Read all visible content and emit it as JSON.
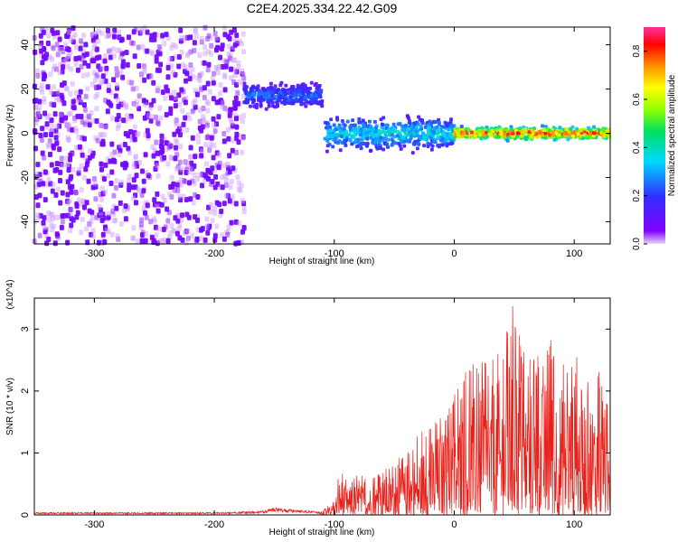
{
  "title": "C2E4.2025.334.22.42.G09",
  "colors": {
    "spectrogram_low": "#8000ff",
    "spectrogram_peak": "#ff0000",
    "snr_line": "#e8201a",
    "axis": "#000000"
  },
  "chart_data": [
    {
      "type": "heatmap",
      "name": "spectrogram",
      "xlabel": "Height of straight line (km)",
      "ylabel": "Frequency (Hz)",
      "xlim": [
        -350,
        130
      ],
      "ylim": [
        -50,
        48
      ],
      "x_ticks": [
        -300,
        -200,
        -100,
        0,
        100
      ],
      "x_tick_labels": [
        "-300",
        "-200",
        "-100",
        "0",
        "100"
      ],
      "y_ticks": [
        -40,
        -20,
        0,
        20,
        40
      ],
      "y_tick_labels": [
        "-40",
        "-20",
        "0",
        "20",
        "40"
      ],
      "colorbar": {
        "label": "Normalized spectral amplitude",
        "range": [
          0,
          0.9
        ],
        "ticks": [
          0,
          0.2,
          0.4,
          0.6,
          0.8
        ],
        "tick_labels": [
          "0.0",
          "0.2",
          "0.4",
          "0.6",
          "0.8"
        ],
        "colormap": "rainbow (purple → blue → cyan → green → yellow → orange → red → pink)"
      },
      "regions": [
        {
          "x_range": [
            -350,
            -175
          ],
          "freq_range": [
            -50,
            48
          ],
          "amplitude": "noise ~0.0-0.1"
        },
        {
          "x_range": [
            -175,
            -110
          ],
          "freq_center": 17,
          "freq_halfwidth": 6,
          "amplitude": 0.25,
          "note": "signal band near +15 to +20 Hz"
        },
        {
          "x_range": [
            -108,
            0
          ],
          "freq_center": 0,
          "freq_halfwidth": 8,
          "amplitude": 0.35
        },
        {
          "x_range": [
            0,
            130
          ],
          "freq_center": 0,
          "freq_halfwidth": 3,
          "amplitude": 0.8,
          "note": "narrow band, peaks ~0.85 near x=50-100"
        }
      ]
    },
    {
      "type": "line",
      "name": "snr",
      "xlabel": "Height of straight line (km)",
      "ylabel": "SNR (10 * v/v)",
      "y_multiplier": "(x10^4)",
      "xlim": [
        -350,
        130
      ],
      "ylim": [
        0,
        3.5
      ],
      "x_ticks": [
        -300,
        -200,
        -100,
        0,
        100
      ],
      "x_tick_labels": [
        "-300",
        "-200",
        "-100",
        "0",
        "100"
      ],
      "y_ticks": [
        0,
        1,
        2,
        3
      ],
      "y_tick_labels": [
        "0",
        "1",
        "2",
        "3"
      ],
      "envelope": {
        "x": [
          -350,
          -200,
          -160,
          -150,
          -110,
          -100,
          -95,
          -90,
          -80,
          -70,
          -60,
          -50,
          -40,
          -30,
          -20,
          -10,
          0,
          10,
          20,
          30,
          40,
          50,
          60,
          70,
          80,
          90,
          100,
          110,
          120,
          130
        ],
        "max": [
          0.05,
          0.05,
          0.08,
          0.15,
          0.06,
          0.25,
          0.78,
          0.55,
          0.65,
          0.6,
          0.75,
          0.85,
          1.05,
          1.3,
          1.5,
          1.7,
          1.95,
          2.35,
          2.5,
          2.6,
          2.8,
          3.5,
          2.5,
          2.6,
          2.85,
          2.6,
          2.7,
          2.5,
          2.4,
          1.6
        ],
        "series_color": "#e8201a"
      }
    }
  ]
}
